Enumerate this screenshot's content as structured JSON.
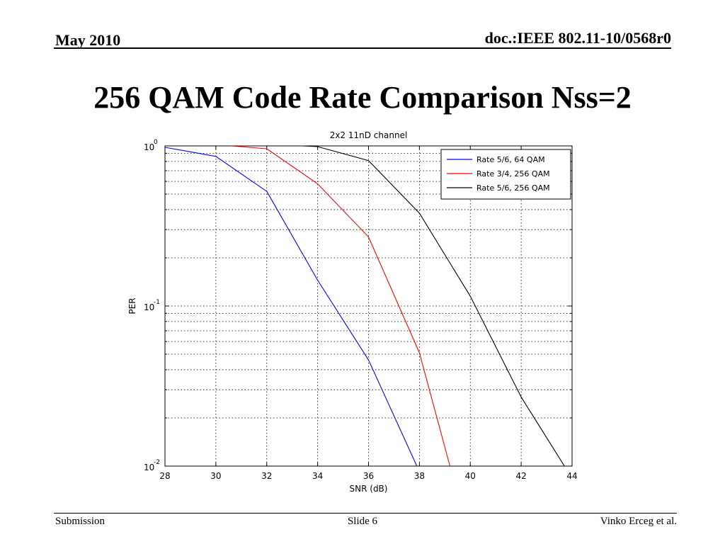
{
  "header": {
    "date": "May 2010",
    "doc_id": "doc.:IEEE 802.11-10/0568r0"
  },
  "slide_title": "256 QAM Code Rate Comparison Nss=2",
  "footer": {
    "left": "Submission",
    "center": "Slide 6",
    "right": "Vinko Erceg et al."
  },
  "chart_data": {
    "type": "line",
    "title": "2x2 11nD channel",
    "xlabel": "SNR (dB)",
    "ylabel": "PER",
    "xlim": [
      28,
      44
    ],
    "ylim": [
      0.01,
      1
    ],
    "yscale": "log",
    "grid": true,
    "legend_position": "top-right",
    "x_ticks": [
      28,
      30,
      32,
      34,
      36,
      38,
      40,
      42,
      44
    ],
    "y_ticks": [
      {
        "value": 1,
        "base": "10",
        "exp": "0"
      },
      {
        "value": 0.1,
        "base": "10",
        "exp": "-1"
      },
      {
        "value": 0.01,
        "base": "10",
        "exp": "-2"
      }
    ],
    "series": [
      {
        "name": "Rate 5/6, 64 QAM",
        "color": "#0000ff",
        "points": [
          [
            28,
            0.98
          ],
          [
            30,
            0.86
          ],
          [
            32,
            0.52
          ],
          [
            34,
            0.145
          ],
          [
            36,
            0.046
          ],
          [
            37.9,
            0.01
          ]
        ]
      },
      {
        "name": "Rate 3/4, 256 QAM",
        "color": "#ff0000",
        "points": [
          [
            30.6,
            1.0
          ],
          [
            32,
            0.96
          ],
          [
            34,
            0.58
          ],
          [
            36,
            0.27
          ],
          [
            38,
            0.051
          ],
          [
            39.2,
            0.01
          ]
        ]
      },
      {
        "name": "Rate 5/6, 256 QAM",
        "color": "#000000",
        "points": [
          [
            33.4,
            1.0
          ],
          [
            34,
            0.99
          ],
          [
            36,
            0.81
          ],
          [
            38,
            0.38
          ],
          [
            40,
            0.115
          ],
          [
            42,
            0.027
          ],
          [
            43.7,
            0.01
          ]
        ]
      }
    ]
  }
}
